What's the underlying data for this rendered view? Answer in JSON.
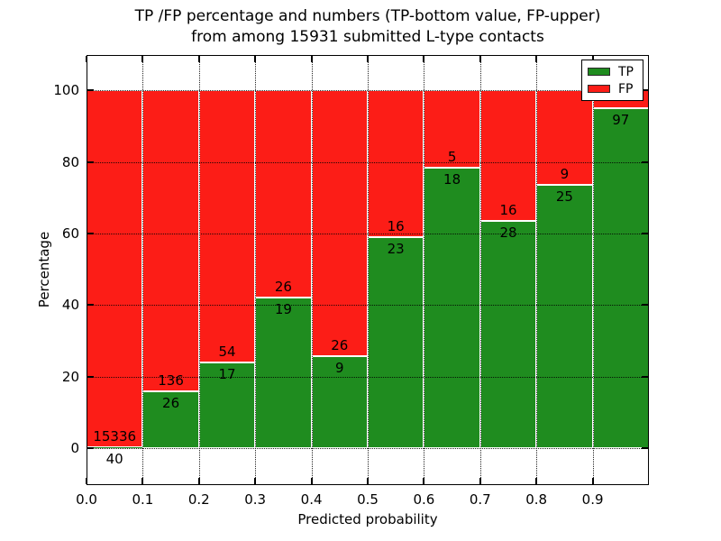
{
  "title": {
    "line1": "TP /FP percentage and numbers (TP-bottom value, FP-upper)",
    "line2": "from among 15931 submitted L-type contacts"
  },
  "axes": {
    "ylabel": "Percentage",
    "xlabel": "Predicted probability",
    "ytick_labels": [
      "0",
      "20",
      "40",
      "60",
      "80",
      "100"
    ],
    "xtick_labels": [
      "0.0",
      "0.1",
      "0.2",
      "0.3",
      "0.4",
      "0.5",
      "0.6",
      "0.7",
      "0.8",
      "0.9"
    ]
  },
  "legend": {
    "items": [
      {
        "label": "TP",
        "color": "#1f8c1f"
      },
      {
        "label": "FP",
        "color": "#fc1d17"
      }
    ],
    "position": "upper right"
  },
  "colors": {
    "tp_green": "#1f8c1f",
    "fp_red": "#fc1d17",
    "bar_edge": "#ffffff",
    "axis": "#000000"
  },
  "chart_data": {
    "type": "bar",
    "stacked": true,
    "normalized_total_percent": 100,
    "title": "TP /FP percentage and numbers (TP-bottom value, FP-upper) from among 15931 submitted L-type contacts",
    "xlabel": "Predicted probability",
    "ylabel": "Percentage",
    "xlim": [
      0.0,
      1.0
    ],
    "ylim": [
      -10,
      110
    ],
    "xticks": [
      0.0,
      0.1,
      0.2,
      0.3,
      0.4,
      0.5,
      0.6,
      0.7,
      0.8,
      0.9
    ],
    "yticks": [
      0,
      20,
      40,
      60,
      80,
      100
    ],
    "grid": "dotted",
    "legend_position": "upper right",
    "bin_width": 0.1,
    "bin_starts": [
      0.0,
      0.1,
      0.2,
      0.3,
      0.4,
      0.5,
      0.6,
      0.7,
      0.8,
      0.9
    ],
    "total_submitted": 15931,
    "series": [
      {
        "name": "TP",
        "color": "#1f8c1f",
        "counts": [
          40,
          26,
          17,
          19,
          9,
          23,
          18,
          28,
          25,
          97
        ],
        "percent": [
          0.3,
          16.0,
          23.9,
          42.2,
          25.7,
          59.0,
          78.3,
          63.6,
          73.5,
          95.1
        ]
      },
      {
        "name": "FP",
        "color": "#fc1d17",
        "counts": [
          15336,
          136,
          54,
          26,
          26,
          16,
          5,
          16,
          9,
          null
        ],
        "percent": [
          99.7,
          84.0,
          76.1,
          57.8,
          74.3,
          41.0,
          21.7,
          36.4,
          26.5,
          4.9
        ]
      }
    ]
  }
}
